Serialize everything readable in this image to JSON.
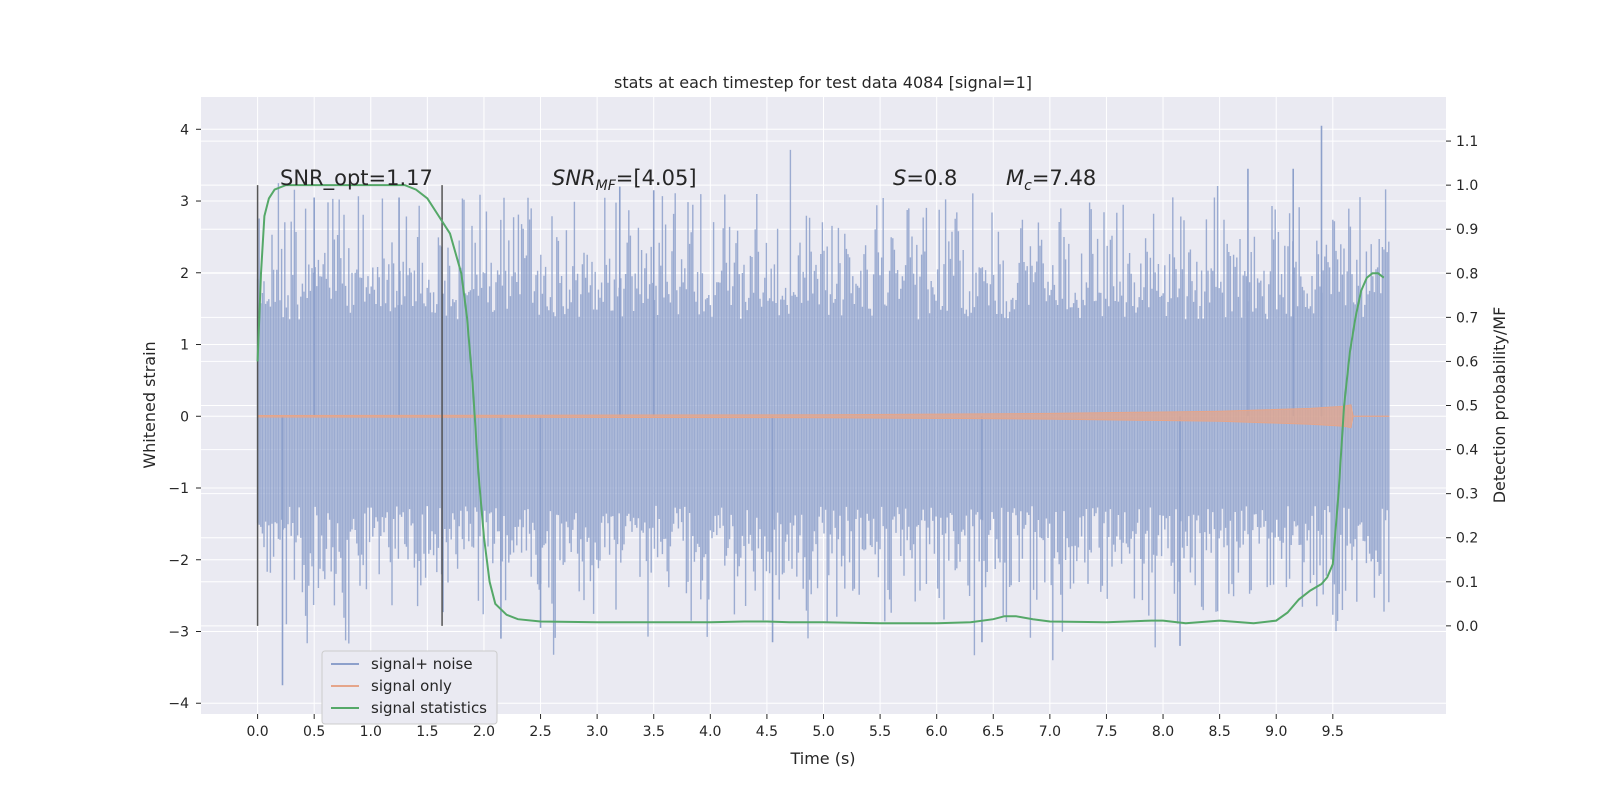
{
  "chart_data": {
    "type": "line",
    "title": "stats at each timestep for test data 4084 [signal=1]",
    "xlabel": "Time (s)",
    "ylabel": "Whitened strain",
    "y2label": "Detection probability/MF",
    "xlim": [
      -0.5,
      10.5
    ],
    "ylim": [
      -4.15,
      4.45
    ],
    "y2lim": [
      -0.2,
      1.2
    ],
    "xticks": [
      "0.0",
      "0.5",
      "1.0",
      "1.5",
      "2.0",
      "2.5",
      "3.0",
      "3.5",
      "4.0",
      "4.5",
      "5.0",
      "5.5",
      "6.0",
      "6.5",
      "7.0",
      "7.5",
      "8.0",
      "8.5",
      "9.0",
      "9.5"
    ],
    "yticks": [
      "4",
      "3",
      "2",
      "1",
      "0",
      "−1",
      "−2",
      "−3",
      "−4"
    ],
    "y2ticks": [
      "1.1",
      "1.0",
      "0.9",
      "0.8",
      "0.7",
      "0.6",
      "0.5",
      "0.4",
      "0.3",
      "0.2",
      "0.1",
      "0.0"
    ],
    "grid": true,
    "background": "#eaeaf2",
    "annotations": {
      "snr_opt": "SNR_opt=1.17",
      "snr_mf_main": "SNR",
      "snr_mf_sub": "MF",
      "snr_mf_value": "=[4.05]",
      "s_symbol": "S",
      "s_value": "=0.8",
      "mc_symbol": "M",
      "mc_sub": "c",
      "mc_value": "=7.48"
    },
    "vertical_markers": [
      0.0,
      1.63
    ],
    "legend": {
      "placement": "lower-left",
      "entries": [
        {
          "label": "signal+ noise",
          "color": "#8da0cb"
        },
        {
          "label": "signal only",
          "color": "#e5a58a"
        },
        {
          "label": "signal statistics",
          "color": "#55a868"
        }
      ]
    },
    "series": [
      {
        "name": "signal+ noise",
        "axis": "left",
        "color": "#8da0cb",
        "t_range": [
          0.0,
          10.0
        ],
        "band_typical": [
          -1.25,
          1.35
        ],
        "band_envelope": [
          -2.6,
          3.1
        ],
        "peak_samples": [
          {
            "t": 0.22,
            "y": -3.75
          },
          {
            "t": 0.5,
            "y": 3.05
          },
          {
            "t": 1.25,
            "y": 3.05
          },
          {
            "t": 2.15,
            "y": -3.1
          },
          {
            "t": 2.5,
            "y": -2.95
          },
          {
            "t": 3.2,
            "y": 3.2
          },
          {
            "t": 3.5,
            "y": 3.15
          },
          {
            "t": 4.55,
            "y": -3.15
          },
          {
            "t": 6.4,
            "y": -3.15
          },
          {
            "t": 8.15,
            "y": -3.2
          },
          {
            "t": 8.75,
            "y": 3.45
          },
          {
            "t": 9.4,
            "y": 4.05
          },
          {
            "t": 9.15,
            "y": 3.45
          }
        ]
      },
      {
        "name": "signal only",
        "axis": "left",
        "color": "#e5a58a",
        "points": [
          {
            "t": 0.0,
            "amp": 0.01
          },
          {
            "t": 5.0,
            "amp": 0.02
          },
          {
            "t": 7.0,
            "amp": 0.04
          },
          {
            "t": 8.5,
            "amp": 0.07
          },
          {
            "t": 9.3,
            "amp": 0.11
          },
          {
            "t": 9.6,
            "amp": 0.14
          },
          {
            "t": 9.66,
            "amp": 0.16
          },
          {
            "t": 9.68,
            "amp": 0.0
          }
        ]
      },
      {
        "name": "signal statistics",
        "axis": "right",
        "color": "#55a868",
        "x": [
          0.0,
          0.03,
          0.06,
          0.1,
          0.15,
          0.25,
          0.5,
          0.8,
          1.1,
          1.3,
          1.4,
          1.5,
          1.6,
          1.7,
          1.8,
          1.85,
          1.9,
          1.95,
          2.0,
          2.05,
          2.1,
          2.2,
          2.3,
          2.5,
          3.0,
          3.5,
          4.0,
          4.3,
          4.5,
          4.7,
          5.0,
          5.5,
          6.0,
          6.3,
          6.5,
          6.6,
          6.7,
          6.85,
          7.0,
          7.5,
          7.9,
          8.0,
          8.2,
          8.5,
          8.8,
          9.0,
          9.1,
          9.2,
          9.3,
          9.4,
          9.45,
          9.5,
          9.55,
          9.6,
          9.65,
          9.7,
          9.75,
          9.8,
          9.85,
          9.9,
          9.95
        ],
        "y": [
          0.6,
          0.8,
          0.93,
          0.97,
          0.99,
          1.0,
          1.0,
          1.0,
          1.0,
          1.0,
          0.99,
          0.97,
          0.93,
          0.89,
          0.8,
          0.7,
          0.55,
          0.35,
          0.2,
          0.1,
          0.05,
          0.025,
          0.015,
          0.01,
          0.008,
          0.008,
          0.008,
          0.01,
          0.01,
          0.008,
          0.008,
          0.006,
          0.006,
          0.008,
          0.015,
          0.022,
          0.022,
          0.015,
          0.01,
          0.008,
          0.012,
          0.012,
          0.006,
          0.012,
          0.006,
          0.012,
          0.03,
          0.06,
          0.08,
          0.095,
          0.11,
          0.14,
          0.3,
          0.5,
          0.62,
          0.7,
          0.76,
          0.79,
          0.8,
          0.8,
          0.79
        ]
      }
    ]
  }
}
